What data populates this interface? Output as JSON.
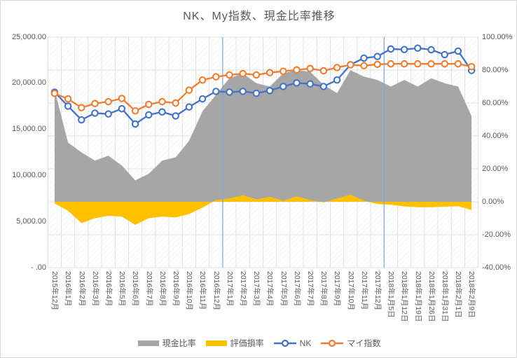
{
  "title": "NK、My指数、現金比率推移",
  "legend": {
    "cash_label": "現金比率",
    "loss_label": "評価損率",
    "nk_label": "NK",
    "my_label": "マイ指数"
  },
  "axes": {
    "left_ticks": [
      "25,000.00",
      "20,000.00",
      "15,000.00",
      "10,000.00",
      "5,000.00",
      "- .00"
    ],
    "right_ticks": [
      "100.00%",
      "80.00%",
      "60.00%",
      "40.00%",
      "20.00%",
      "0.00%",
      "-20.00%",
      "-40.00%"
    ]
  },
  "colors": {
    "cash_area": "#A6A6A6",
    "loss_area": "#FFC000",
    "nk_line": "#4472C4",
    "my_line": "#ED7D31",
    "gridline": "#D9D9D9",
    "hatch": "#ECECEC",
    "year_separator": "#7EA6D8",
    "axis_text": "#595959",
    "marker_fill": "#FFFFFF"
  },
  "chart_data": {
    "type": "combo",
    "title": "NK、My指数、現金比率推移",
    "categories": [
      "2015年12月",
      "2016年1月",
      "2016年2月",
      "2016年3月",
      "2016年4月",
      "2016年5月",
      "2016年6月",
      "2016年7月",
      "2016年8月",
      "2016年9月",
      "2016年10月",
      "2016年11月",
      "2016年12月",
      "2017年1月",
      "2017年2月",
      "2017年3月",
      "2017年4月",
      "2017年5月",
      "2017年6月",
      "2017年7月",
      "2017年8月",
      "2017年9月",
      "2017年10月",
      "2017年11月",
      "2017年12月",
      "2018年1月5日",
      "2018年1月12日",
      "2018年1月19日",
      "2018年1月26日",
      "2018年1月31日",
      "2018年2月1日",
      "2018年2月9日"
    ],
    "series": [
      {
        "name": "現金比率",
        "type": "area",
        "axis": "right",
        "unit": "%",
        "values": [
          68,
          36,
          30,
          25,
          28,
          22,
          13,
          17,
          25,
          27,
          37,
          55,
          65,
          75,
          78,
          72,
          70,
          78,
          80,
          79,
          71,
          66,
          80,
          76,
          74,
          70,
          74,
          70,
          75,
          72,
          70,
          52
        ]
      },
      {
        "name": "評価損率",
        "type": "area",
        "axis": "right",
        "unit": "%",
        "values": [
          -1,
          -5.5,
          -13,
          -10,
          -8.5,
          -9,
          -14,
          -10,
          -9,
          -9.5,
          -7.5,
          -3.5,
          1,
          2,
          4,
          1.5,
          3,
          0.7,
          3.3,
          1,
          -0.4,
          2,
          4.3,
          0.7,
          -1.4,
          -1.8,
          -2.8,
          -3.3,
          -3.3,
          -3,
          -2.7,
          -5
        ]
      },
      {
        "name": "NK",
        "type": "line",
        "axis": "left",
        "marker": "circle",
        "values": [
          19034,
          17518,
          16027,
          16759,
          16666,
          17235,
          15576,
          16569,
          16887,
          16450,
          17425,
          18308,
          19114,
          19041,
          19119,
          18909,
          19197,
          19651,
          20033,
          19925,
          19646,
          20356,
          22011,
          22725,
          22900,
          23714,
          23654,
          23808,
          23632,
          23098,
          23486,
          21383
        ]
      },
      {
        "name": "マイ指数",
        "type": "line",
        "axis": "left",
        "marker": "circle",
        "values": [
          18900,
          18300,
          17350,
          17800,
          18000,
          18350,
          17000,
          17700,
          18000,
          17850,
          19250,
          20350,
          20700,
          20900,
          21050,
          20900,
          21150,
          21300,
          21450,
          21600,
          21350,
          21700,
          22000,
          21900,
          22050,
          22100,
          22100,
          22100,
          22100,
          22100,
          22100,
          21800
        ]
      }
    ],
    "left_axis": {
      "min": 0,
      "max": 25000,
      "tick_step": 5000
    },
    "right_axis": {
      "min": -40,
      "max": 100,
      "tick_step": 20
    },
    "gridlines": {
      "horizontal": true,
      "vertical": true
    },
    "plot_background": "diagonal-hatch",
    "year_separators_after": [
      "2016年12月",
      "2017年12月"
    ],
    "legend_position": "bottom"
  }
}
